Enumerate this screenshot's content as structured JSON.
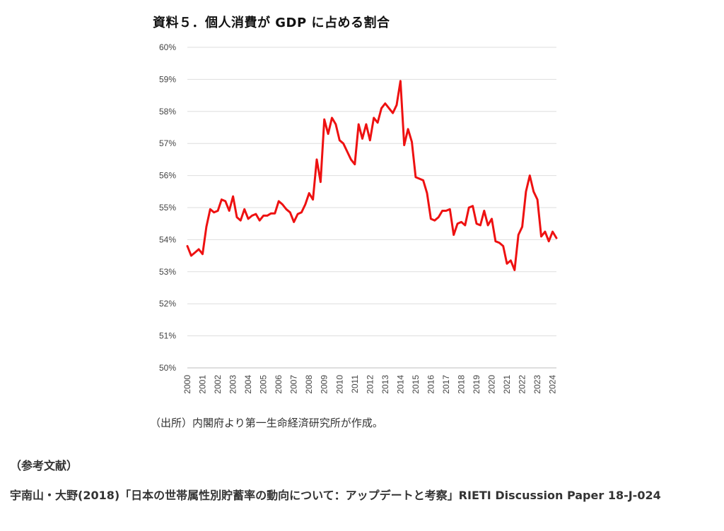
{
  "chart_data": {
    "type": "line",
    "title": "資料５．個人消費が GDP に占める割合",
    "xlabel": "",
    "ylabel": "",
    "ylim": [
      50,
      60
    ],
    "xlim": [
      2000.0,
      2024.25
    ],
    "yticks": [
      "50%",
      "51%",
      "52%",
      "53%",
      "54%",
      "55%",
      "56%",
      "57%",
      "58%",
      "59%",
      "60%"
    ],
    "xticks": [
      "2000",
      "2001",
      "2002",
      "2003",
      "2004",
      "2005",
      "2006",
      "2007",
      "2008",
      "2009",
      "2010",
      "2011",
      "2012",
      "2013",
      "2014",
      "2015",
      "2016",
      "2017",
      "2018",
      "2019",
      "2020",
      "2021",
      "2022",
      "2023",
      "2024"
    ],
    "grid": "horizontal",
    "legend": "none",
    "color": "#ee1111",
    "series": [
      {
        "x": [
          2000.0,
          2000.25,
          2000.5,
          2000.75,
          2001.0,
          2001.25,
          2001.5,
          2001.75,
          2002.0,
          2002.25,
          2002.5,
          2002.75,
          2003.0,
          2003.25,
          2003.5,
          2003.75,
          2004.0,
          2004.25,
          2004.5,
          2004.75,
          2005.0,
          2005.25,
          2005.5,
          2005.75,
          2006.0,
          2006.25,
          2006.5,
          2006.75,
          2007.0,
          2007.25,
          2007.5,
          2007.75,
          2008.0,
          2008.25,
          2008.5,
          2008.75,
          2009.0,
          2009.25,
          2009.5,
          2009.75,
          2010.0,
          2010.25,
          2010.5,
          2010.75,
          2011.0,
          2011.25,
          2011.5,
          2011.75,
          2012.0,
          2012.25,
          2012.5,
          2012.75,
          2013.0,
          2013.25,
          2013.5,
          2013.75,
          2014.0,
          2014.25,
          2014.5,
          2014.75,
          2015.0,
          2015.25,
          2015.5,
          2015.75,
          2016.0,
          2016.25,
          2016.5,
          2016.75,
          2017.0,
          2017.25,
          2017.5,
          2017.75,
          2018.0,
          2018.25,
          2018.5,
          2018.75,
          2019.0,
          2019.25,
          2019.5,
          2019.75,
          2020.0,
          2020.25,
          2020.5,
          2020.75,
          2021.0,
          2021.25,
          2021.5,
          2021.75,
          2022.0,
          2022.25,
          2022.5,
          2022.75,
          2023.0,
          2023.25,
          2023.5,
          2023.75,
          2024.0,
          2024.25
        ],
        "values": [
          53.8,
          53.5,
          53.6,
          53.7,
          53.55,
          54.4,
          54.95,
          54.85,
          54.9,
          55.25,
          55.2,
          54.9,
          55.35,
          54.7,
          54.6,
          54.95,
          54.65,
          54.75,
          54.8,
          54.6,
          54.75,
          54.75,
          54.82,
          54.82,
          55.2,
          55.1,
          54.95,
          54.85,
          54.55,
          54.8,
          54.85,
          55.1,
          55.45,
          55.25,
          56.5,
          55.8,
          57.75,
          57.3,
          57.8,
          57.6,
          57.1,
          57.0,
          56.75,
          56.5,
          56.35,
          57.6,
          57.15,
          57.6,
          57.1,
          57.8,
          57.65,
          58.1,
          58.25,
          58.1,
          57.95,
          58.2,
          58.95,
          56.95,
          57.45,
          57.05,
          55.95,
          55.9,
          55.85,
          55.45,
          54.65,
          54.6,
          54.7,
          54.9,
          54.9,
          54.95,
          54.15,
          54.5,
          54.55,
          54.45,
          55.0,
          55.05,
          54.5,
          54.45,
          54.9,
          54.45,
          54.65,
          53.95,
          53.9,
          53.8,
          53.25,
          53.35,
          53.05,
          54.15,
          54.4,
          55.5,
          56.0,
          55.5,
          55.25,
          54.1,
          54.25,
          53.95,
          54.25,
          54.05
        ]
      }
    ]
  },
  "source_note": "（出所）内閣府より第一生命経済研究所が作成。",
  "references": {
    "heading": "（参考文献）",
    "entry": "宇南山・大野(2018)「日本の世帯属性別貯蓄率の動向について：アップデートと考察」RIETI Discussion Paper 18-J-024"
  }
}
